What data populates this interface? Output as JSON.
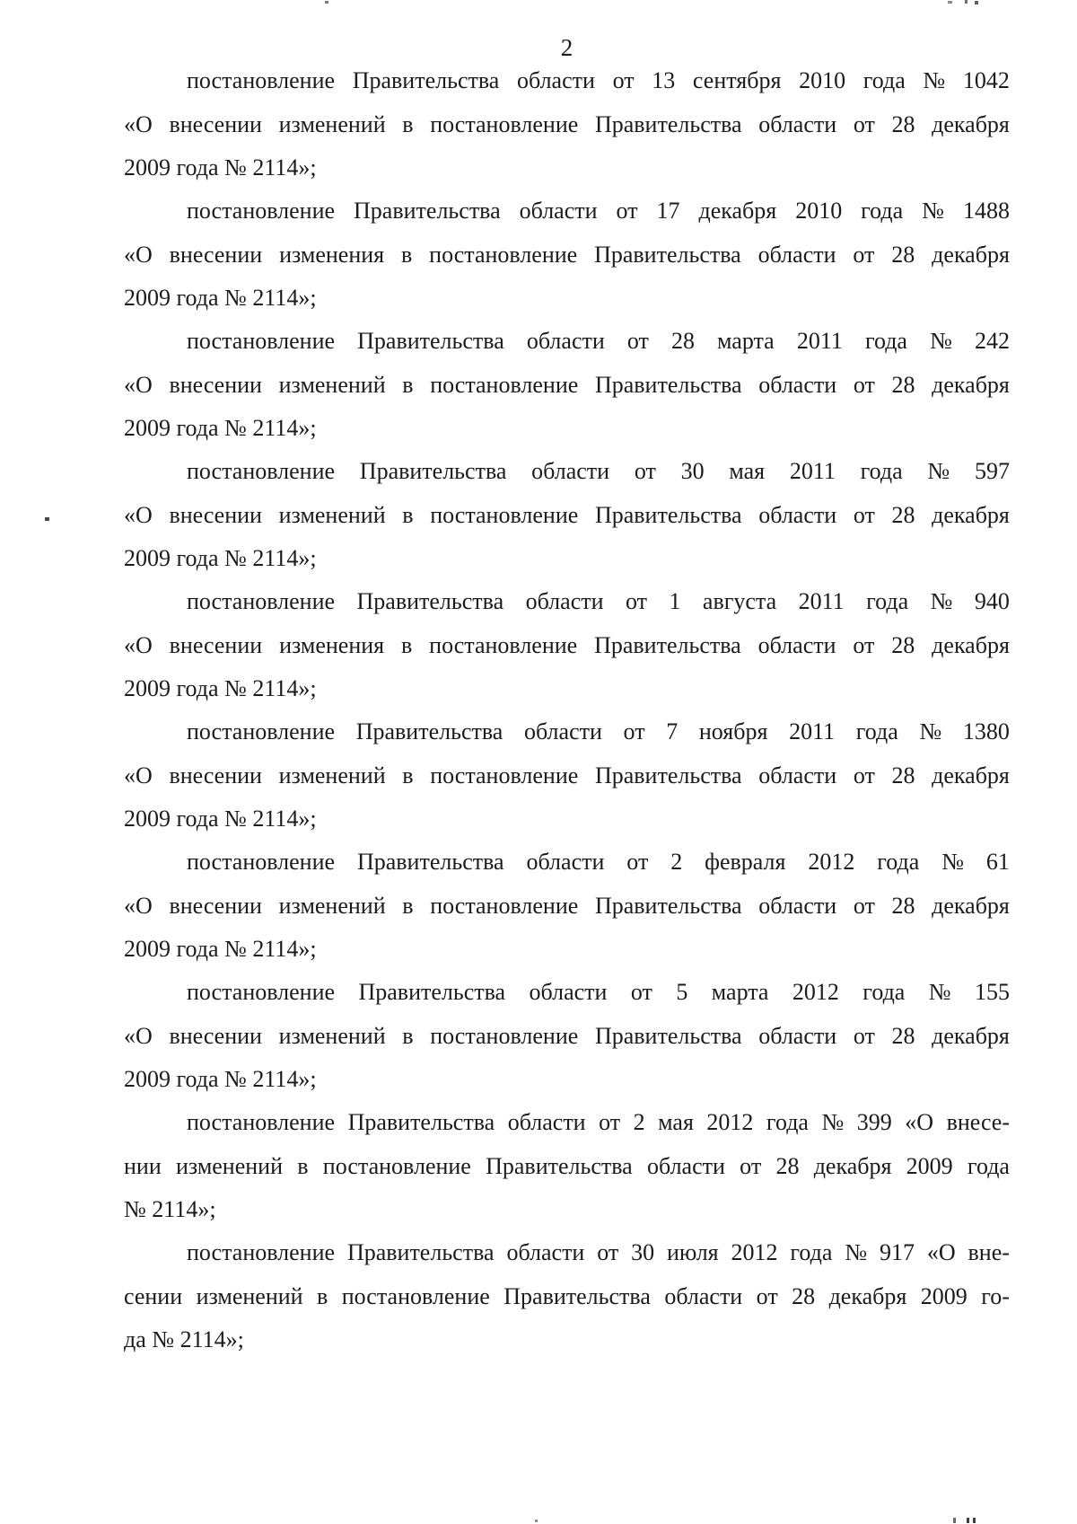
{
  "page": {
    "number": "2",
    "background_color": "#ffffff",
    "text_color": "#1b1b1b"
  },
  "paragraphs": [
    {
      "lines": [
        "постановление Правительства области от 13 сентября 2010 года № 1042",
        "«О внесении изменений в постановление Правительства области от 28 декабря",
        "2009 года № 2114»;"
      ]
    },
    {
      "lines": [
        "постановление Правительства области от 17 декабря 2010 года № 1488",
        "«О внесении изменения в постановление Правительства области от 28 декабря",
        "2009 года № 2114»;"
      ]
    },
    {
      "lines": [
        "постановление Правительства области от 28 марта 2011 года № 242",
        "«О внесении изменений в постановление Правительства области от 28 декабря",
        "2009 года № 2114»;"
      ]
    },
    {
      "lines": [
        "постановление Правительства области от 30 мая 2011 года № 597",
        "«О внесении изменений в постановление Правительства области от 28 декабря",
        "2009 года № 2114»;"
      ]
    },
    {
      "lines": [
        "постановление Правительства области от 1 августа 2011 года № 940",
        "«О внесении изменения в постановление Правительства области от 28 декабря",
        "2009 года № 2114»;"
      ]
    },
    {
      "lines": [
        "постановление Правительства области от 7 ноября 2011 года № 1380",
        "«О внесении изменений в постановление Правительства области от 28 декабря",
        "2009 года № 2114»;"
      ]
    },
    {
      "lines": [
        "постановление Правительства области от 2 февраля 2012 года № 61",
        "«О внесении изменений в постановление Правительства области от 28 декабря",
        "2009 года № 2114»;"
      ]
    },
    {
      "lines": [
        "постановление Правительства области от 5 марта 2012 года № 155",
        "«О внесении изменений в постановление Правительства области от 28 декабря",
        "2009 года № 2114»;"
      ]
    },
    {
      "lines": [
        "постановление Правительства области от 2 мая 2012 года № 399 «О внесе-",
        "нии изменений в постановление Правительства области от 28 декабря 2009 года",
        "№ 2114»;"
      ]
    },
    {
      "lines": [
        "постановление Правительства области от 30 июля 2012 года № 917 «О вне-",
        "сении изменений в постановление Правительства области от 28 декабря 2009 го-",
        "да № 2114»;"
      ]
    }
  ]
}
